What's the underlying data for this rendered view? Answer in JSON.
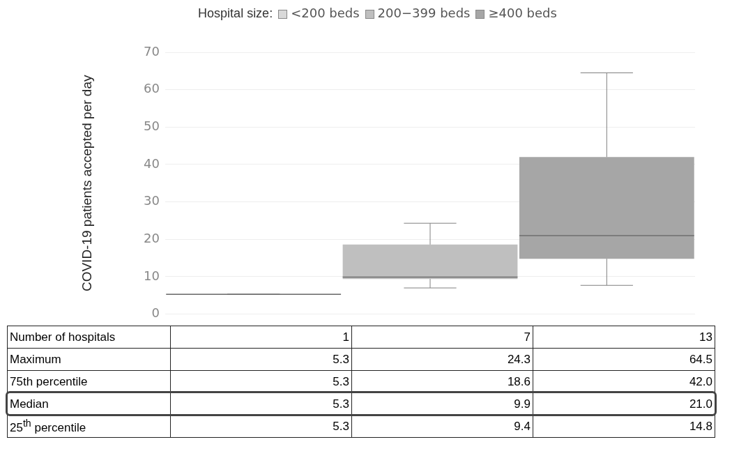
{
  "chart_data": {
    "type": "box",
    "ylabel": "COVID-19 patients accepted per day",
    "legend_title": "Hospital size:",
    "legend": "top",
    "grid": "y",
    "data_labels": true,
    "categories": [
      null,
      null,
      null
    ],
    "ylim": [
      0,
      70
    ],
    "yticks": [
      0,
      10,
      20,
      30,
      40,
      50,
      60,
      70
    ],
    "series": [
      {
        "name": "<200 beds",
        "color": "#d9d9d9",
        "boxes": [
          {
            "low": 5.3,
            "q1": 5.3,
            "median": 5.3,
            "q3": 5.3,
            "high": 5.3
          },
          null,
          null
        ]
      },
      {
        "name": "200−399 beds",
        "color": "#bfbfbf",
        "boxes": [
          null,
          {
            "low": 7.0,
            "q1": 9.4,
            "median": 9.9,
            "q3": 18.6,
            "high": 24.3
          },
          null
        ]
      },
      {
        "name": "≥400 beds",
        "color": "#a6a6a6",
        "boxes": [
          null,
          null,
          {
            "low": 7.7,
            "q1": 14.8,
            "median": 21.0,
            "q3": 42.0,
            "high": 64.5
          }
        ]
      }
    ],
    "annotations": [
      "Number of hospitals",
      "1",
      "7",
      "13",
      "Maximum",
      "5.3",
      "24.3",
      "64.5",
      "75th percentile",
      "5.3",
      "18.6",
      "42.0",
      "Median",
      "5.3",
      "9.9",
      "21.0",
      "25$^{th}$ percentile",
      "5.3",
      "9.4",
      "14.8"
    ]
  }
}
